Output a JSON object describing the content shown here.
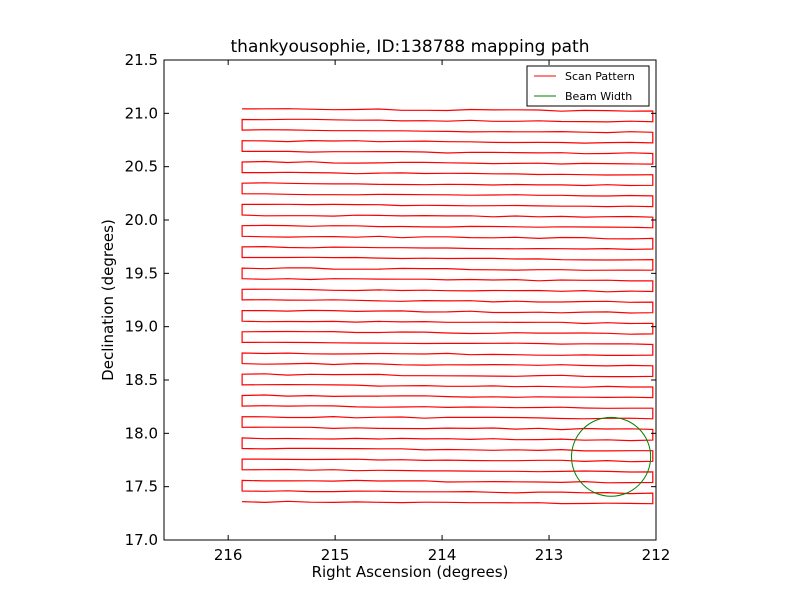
{
  "chart_data": {
    "type": "line",
    "title": "thankyousophie, ID:138788 mapping path",
    "xlabel": "Right Ascension (degrees)",
    "ylabel": "Declination (degrees)",
    "xlim": [
      216.6,
      212.0
    ],
    "ylim": [
      17.0,
      21.5
    ],
    "xticks": [
      216,
      215,
      214,
      213,
      212
    ],
    "yticks": [
      17.0,
      17.5,
      18.0,
      18.5,
      19.0,
      19.5,
      20.0,
      20.5,
      21.0,
      21.5
    ],
    "x_tick_labels": [
      "216",
      "215",
      "214",
      "213",
      "212"
    ],
    "y_tick_labels": [
      "17.0",
      "17.5",
      "18.0",
      "18.5",
      "19.0",
      "19.5",
      "20.0",
      "20.5",
      "21.0",
      "21.5"
    ],
    "grid": false,
    "legend_position": "top-right",
    "series": [
      {
        "name": "Scan Pattern",
        "color": "#ff0000",
        "raster": {
          "ra_east": 215.87,
          "ra_west": 212.03,
          "dec_start": 17.35,
          "dec_end": 21.03,
          "n_rows": 38,
          "row_step_deg": 0.0995
        }
      },
      {
        "name": "Beam Width",
        "color": "#007f00",
        "circle": {
          "center_ra": 212.42,
          "center_dec": 17.78,
          "radius_deg": 0.37
        }
      }
    ]
  }
}
